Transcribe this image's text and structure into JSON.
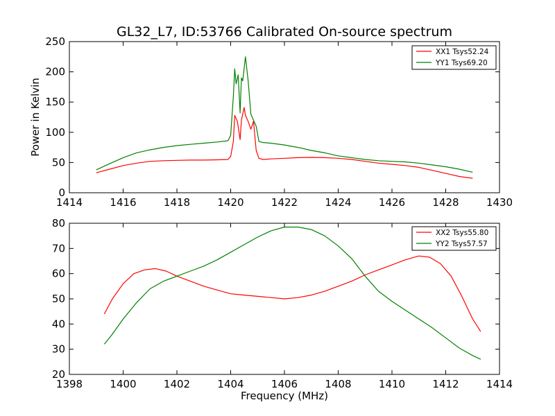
{
  "figure": {
    "title": "GL32_L7, ID:53766 Calibrated On-source spectrum"
  },
  "chart_data": [
    {
      "type": "line",
      "title": "GL32_L7, ID:53766 Calibrated On-source spectrum",
      "xlabel": "",
      "ylabel": "Power in Kelvin",
      "xlim": [
        1414,
        1430
      ],
      "ylim": [
        0,
        250
      ],
      "xticks": [
        "1414",
        "1416",
        "1418",
        "1420",
        "1422",
        "1424",
        "1426",
        "1428",
        "1430"
      ],
      "yticks": [
        "0",
        "50",
        "100",
        "150",
        "200",
        "250"
      ],
      "legend_position": "top-right",
      "grid": false,
      "series": [
        {
          "name": "XX1 Tsys52.24",
          "color": "#ff0000",
          "x": [
            1415.0,
            1415.5,
            1416.0,
            1416.5,
            1417.0,
            1417.5,
            1418.0,
            1418.5,
            1419.0,
            1419.5,
            1419.9,
            1420.0,
            1420.1,
            1420.15,
            1420.25,
            1420.35,
            1420.4,
            1420.5,
            1420.55,
            1420.65,
            1420.75,
            1420.85,
            1420.95,
            1421.05,
            1421.2,
            1421.5,
            1422.0,
            1422.5,
            1423.0,
            1423.5,
            1424.0,
            1424.5,
            1425.0,
            1425.5,
            1426.0,
            1426.5,
            1427.0,
            1427.5,
            1428.0,
            1428.5,
            1429.0
          ],
          "y": [
            33,
            39,
            45,
            49,
            52,
            53,
            53.5,
            54,
            54,
            54.5,
            55,
            60,
            85,
            128,
            118,
            88,
            120,
            141,
            128,
            118,
            105,
            118,
            70,
            57,
            55,
            56,
            57,
            58,
            58.5,
            58,
            57,
            55,
            52,
            49,
            47,
            45,
            42,
            37,
            32,
            27,
            24
          ]
        },
        {
          "name": "YY1 Tsys69.20",
          "color": "#008000",
          "x": [
            1415.0,
            1415.5,
            1416.0,
            1416.5,
            1417.0,
            1417.5,
            1418.0,
            1418.5,
            1419.0,
            1419.5,
            1419.9,
            1420.0,
            1420.1,
            1420.15,
            1420.2,
            1420.28,
            1420.35,
            1420.4,
            1420.45,
            1420.55,
            1420.65,
            1420.75,
            1420.85,
            1420.95,
            1421.05,
            1421.2,
            1421.5,
            1422.0,
            1422.5,
            1423.0,
            1423.5,
            1424.0,
            1424.5,
            1425.0,
            1425.5,
            1426.0,
            1426.5,
            1427.0,
            1427.5,
            1428.0,
            1428.5,
            1429.0
          ],
          "y": [
            38,
            48,
            58,
            66,
            71,
            75,
            78,
            80,
            82,
            84,
            86,
            95,
            160,
            205,
            180,
            195,
            132,
            190,
            185,
            225,
            185,
            130,
            120,
            110,
            85,
            83,
            82,
            79,
            75,
            70,
            66,
            61,
            58,
            55,
            53,
            52,
            51,
            49,
            46,
            43,
            39,
            34
          ]
        }
      ]
    },
    {
      "type": "line",
      "title": "",
      "xlabel": "Frequency (MHz)",
      "ylabel": "",
      "xlim": [
        1398,
        1414
      ],
      "ylim": [
        20,
        80
      ],
      "xticks": [
        "1398",
        "1400",
        "1402",
        "1404",
        "1406",
        "1408",
        "1410",
        "1412",
        "1414"
      ],
      "yticks": [
        "20",
        "30",
        "40",
        "50",
        "60",
        "70",
        "80"
      ],
      "legend_position": "top-right",
      "grid": false,
      "series": [
        {
          "name": "XX2 Tsys55.80",
          "color": "#ff0000",
          "x": [
            1399.3,
            1399.6,
            1400.0,
            1400.4,
            1400.8,
            1401.2,
            1401.6,
            1402.0,
            1402.5,
            1403.0,
            1403.5,
            1404.0,
            1404.5,
            1405.0,
            1405.5,
            1406.0,
            1406.5,
            1407.0,
            1407.5,
            1408.0,
            1408.5,
            1409.0,
            1409.5,
            1410.0,
            1410.5,
            1411.0,
            1411.4,
            1411.8,
            1412.2,
            1412.6,
            1413.0,
            1413.3
          ],
          "y": [
            44,
            50,
            56,
            60,
            61.5,
            62,
            61,
            59,
            57,
            55,
            53.5,
            52,
            51.5,
            51,
            50.5,
            50,
            50.5,
            51.5,
            53,
            55,
            57,
            59.5,
            61.5,
            63.5,
            65.5,
            67,
            66.5,
            64,
            59,
            51,
            42,
            37
          ]
        },
        {
          "name": "YY2 Tsys57.57",
          "color": "#008000",
          "x": [
            1399.3,
            1399.6,
            1400.0,
            1400.5,
            1401.0,
            1401.5,
            1402.0,
            1402.5,
            1403.0,
            1403.5,
            1404.0,
            1404.5,
            1405.0,
            1405.5,
            1406.0,
            1406.5,
            1407.0,
            1407.5,
            1408.0,
            1408.5,
            1409.0,
            1409.5,
            1410.0,
            1410.5,
            1411.0,
            1411.5,
            1412.0,
            1412.5,
            1413.0,
            1413.3
          ],
          "y": [
            32,
            36,
            42,
            48.5,
            54,
            57,
            59,
            61,
            63,
            65.5,
            68.5,
            71.5,
            74.5,
            77,
            78.5,
            78.5,
            77.5,
            75,
            71,
            66,
            59,
            53,
            49,
            45.5,
            42,
            38.5,
            34.5,
            30.5,
            27.5,
            26
          ]
        }
      ]
    }
  ]
}
